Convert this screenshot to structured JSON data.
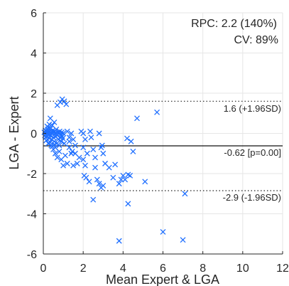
{
  "chart_data": {
    "type": "scatter",
    "title": "",
    "xlabel": "Mean Expert & LGA",
    "ylabel": "LGA - Expert",
    "xlim": [
      0,
      12
    ],
    "ylim": [
      -6,
      6
    ],
    "xticks": [
      "0",
      "2",
      "4",
      "6",
      "8",
      "10",
      "12"
    ],
    "yticks": [
      "6",
      "4",
      "2",
      "0",
      "-2",
      "-4",
      "-6"
    ],
    "grid": true,
    "marker": "x",
    "marker_color": "#1f6fff",
    "annotations": {
      "rpc": "RPC: 2.2   (140%)",
      "cv": "CV: 89%",
      "upper_label": "1.6 (+1.96SD)",
      "mean_label": "-0.62 [p=0.00]",
      "lower_label": "-2.9 (-1.96SD)"
    },
    "reference_lines": {
      "upper": 1.6,
      "mean": -0.62,
      "lower": -2.85
    },
    "points": [
      [
        0.05,
        0.05
      ],
      [
        0.08,
        -0.1
      ],
      [
        0.1,
        0.15
      ],
      [
        0.12,
        -0.2
      ],
      [
        0.15,
        0.0
      ],
      [
        0.18,
        0.1
      ],
      [
        0.2,
        -0.15
      ],
      [
        0.22,
        0.2
      ],
      [
        0.25,
        -0.05
      ],
      [
        0.28,
        0.05
      ],
      [
        0.3,
        -0.25
      ],
      [
        0.32,
        0.1
      ],
      [
        0.35,
        -0.1
      ],
      [
        0.38,
        0.25
      ],
      [
        0.4,
        0.0
      ],
      [
        0.42,
        -0.3
      ],
      [
        0.45,
        0.05
      ],
      [
        0.48,
        0.15
      ],
      [
        0.5,
        -0.2
      ],
      [
        0.52,
        0.05
      ],
      [
        0.55,
        -0.4
      ],
      [
        0.58,
        0.1
      ],
      [
        0.6,
        0.0
      ],
      [
        0.62,
        -0.15
      ],
      [
        0.65,
        0.2
      ],
      [
        0.68,
        -0.5
      ],
      [
        0.7,
        -0.1
      ],
      [
        0.72,
        0.05
      ],
      [
        0.75,
        -0.3
      ],
      [
        0.78,
        0.0
      ],
      [
        0.8,
        -0.6
      ],
      [
        0.82,
        0.1
      ],
      [
        0.85,
        -0.2
      ],
      [
        0.88,
        -0.05
      ],
      [
        0.9,
        -0.4
      ],
      [
        0.92,
        0.05
      ],
      [
        0.95,
        -0.15
      ],
      [
        0.98,
        -0.25
      ],
      [
        1.0,
        0.0
      ],
      [
        1.05,
        -0.5
      ],
      [
        0.15,
        -0.35
      ],
      [
        0.25,
        0.3
      ],
      [
        0.35,
        -0.45
      ],
      [
        0.45,
        0.4
      ],
      [
        0.55,
        -0.55
      ],
      [
        0.3,
        0.45
      ],
      [
        0.2,
        0.35
      ],
      [
        0.4,
        -0.6
      ],
      [
        0.6,
        -0.7
      ],
      [
        0.5,
        -0.8
      ],
      [
        0.35,
        0.75
      ],
      [
        0.55,
        0.55
      ],
      [
        0.7,
        1.4
      ],
      [
        0.85,
        1.55
      ],
      [
        0.95,
        1.7
      ],
      [
        1.15,
        1.45
      ],
      [
        1.05,
        1.6
      ],
      [
        0.6,
        -1.0
      ],
      [
        0.7,
        -1.2
      ],
      [
        0.8,
        -0.9
      ],
      [
        0.9,
        -1.3
      ],
      [
        1.0,
        -1.6
      ],
      [
        1.1,
        -1.1
      ],
      [
        1.2,
        -1.5
      ],
      [
        1.3,
        -0.7
      ],
      [
        1.4,
        -1.0
      ],
      [
        1.5,
        -1.6
      ],
      [
        1.2,
        0.1
      ],
      [
        1.3,
        -0.2
      ],
      [
        1.4,
        0.0
      ],
      [
        1.5,
        -0.3
      ],
      [
        1.6,
        -0.6
      ],
      [
        1.7,
        -1.5
      ],
      [
        1.8,
        -1.2
      ],
      [
        1.3,
        -0.4
      ],
      [
        1.45,
        -0.9
      ],
      [
        1.6,
        -1.0
      ],
      [
        1.9,
        0.1
      ],
      [
        2.0,
        0.0
      ],
      [
        2.1,
        -0.3
      ],
      [
        2.0,
        -0.7
      ],
      [
        2.2,
        -1.0
      ],
      [
        2.1,
        -1.6
      ],
      [
        2.05,
        -2.1
      ],
      [
        2.15,
        -2.2
      ],
      [
        2.3,
        -2.4
      ],
      [
        2.0,
        -1.3
      ],
      [
        2.35,
        0.1
      ],
      [
        2.4,
        -0.2
      ],
      [
        2.5,
        -0.8
      ],
      [
        2.6,
        -1.2
      ],
      [
        2.7,
        -2.3
      ],
      [
        2.8,
        -2.5
      ],
      [
        2.9,
        -2.7
      ],
      [
        3.0,
        -2.6
      ],
      [
        2.5,
        -3.3
      ],
      [
        2.95,
        -0.6
      ],
      [
        2.8,
        0.0
      ],
      [
        2.9,
        -0.7
      ],
      [
        3.0,
        -1.0
      ],
      [
        2.6,
        -1.7
      ],
      [
        3.1,
        -1.5
      ],
      [
        3.3,
        -1.7
      ],
      [
        3.5,
        -2.2
      ],
      [
        3.8,
        -2.5
      ],
      [
        4.2,
        -0.25
      ],
      [
        4.4,
        -0.4
      ],
      [
        4.5,
        -0.9
      ],
      [
        4.0,
        -2.1
      ],
      [
        4.25,
        -2.05
      ],
      [
        4.35,
        -2.1
      ],
      [
        4.25,
        -3.5
      ],
      [
        5.1,
        -2.4
      ],
      [
        3.9,
        -2.3
      ],
      [
        4.7,
        0.75
      ],
      [
        5.7,
        1.05
      ],
      [
        3.8,
        -5.35
      ],
      [
        6.0,
        -4.9
      ],
      [
        7.0,
        -5.3
      ],
      [
        7.1,
        -3.0
      ],
      [
        4.1,
        -2.3
      ],
      [
        3.6,
        -1.55
      ],
      [
        0.25,
        -0.5
      ],
      [
        0.45,
        -0.65
      ]
    ]
  }
}
